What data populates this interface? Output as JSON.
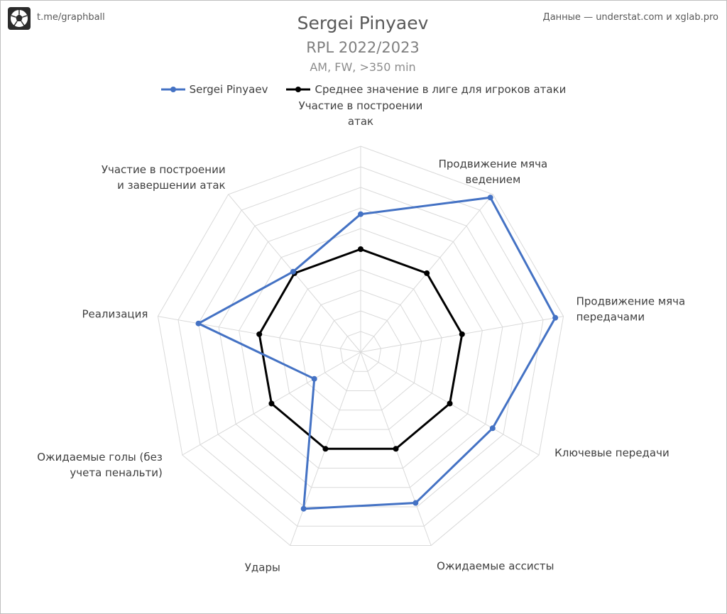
{
  "header": {
    "brand": "t.me/graphball",
    "source": "Данные — understat.com и xglab.pro"
  },
  "chart_data": {
    "type": "radar",
    "title": "Sergei Pinyaev",
    "subtitle": "RPL 2022/2023",
    "subtitle2": "AM, FW, >350 min",
    "legend_placement": "top",
    "grid": true,
    "range": [
      0,
      10
    ],
    "categories": [
      [
        "Участие в построении",
        "атак"
      ],
      [
        "Продвижение мяча",
        "ведением"
      ],
      [
        "Продвижение мяча",
        "передачами"
      ],
      [
        "Ключевые передачи"
      ],
      [
        "Ожидаемые ассисты"
      ],
      [
        "Удары"
      ],
      [
        "Ожидаемые голы (без",
        "учета пенальти)"
      ],
      [
        "Реализация"
      ],
      [
        "Участие в построении",
        "и завершении атак"
      ]
    ],
    "series": [
      {
        "name": "Sergei Pinyaev",
        "color": "#4472c4",
        "values": [
          6.7,
          9.8,
          9.6,
          7.4,
          7.8,
          8.1,
          2.6,
          8.0,
          5.1
        ]
      },
      {
        "name": "Среднее значение в лиге для игроков атаки",
        "color": "#000000",
        "values": [
          5.0,
          5.0,
          5.0,
          5.0,
          5.0,
          5.0,
          5.0,
          5.0,
          5.0
        ]
      }
    ]
  }
}
